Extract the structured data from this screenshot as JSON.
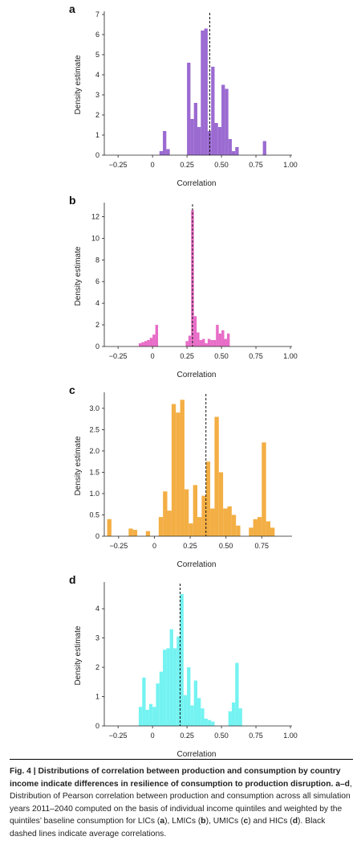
{
  "chart_data": [
    {
      "type": "bar",
      "panel": "a",
      "xlabel": "Correlation",
      "ylabel": "Density estimate",
      "xlim": [
        -0.35,
        1.0
      ],
      "ylim": [
        0,
        7
      ],
      "xticks": [
        -0.25,
        0,
        0.25,
        0.5,
        0.75,
        1.0
      ],
      "xtick_labels": [
        "−0.25",
        "0",
        "0.25",
        "0.50",
        "0.75",
        "1.00"
      ],
      "yticks": [
        0,
        1,
        2,
        3,
        4,
        5,
        6,
        7
      ],
      "mean_line": 0.415,
      "color": "#9b6ad1",
      "bin_width": 0.025,
      "bins": [
        {
          "x": 0.05,
          "v": 0.2
        },
        {
          "x": 0.075,
          "v": 1.2
        },
        {
          "x": 0.1,
          "v": 0.3
        },
        {
          "x": 0.25,
          "v": 4.6
        },
        {
          "x": 0.275,
          "v": 1.8
        },
        {
          "x": 0.3,
          "v": 2.6
        },
        {
          "x": 0.325,
          "v": 1.4
        },
        {
          "x": 0.35,
          "v": 6.2
        },
        {
          "x": 0.375,
          "v": 6.3
        },
        {
          "x": 0.4,
          "v": 1.2
        },
        {
          "x": 0.425,
          "v": 4.4
        },
        {
          "x": 0.45,
          "v": 1.6
        },
        {
          "x": 0.475,
          "v": 1.4
        },
        {
          "x": 0.5,
          "v": 3.5
        },
        {
          "x": 0.525,
          "v": 3.3
        },
        {
          "x": 0.55,
          "v": 0.8
        },
        {
          "x": 0.575,
          "v": 0.2
        },
        {
          "x": 0.6,
          "v": 0.4
        },
        {
          "x": 0.8,
          "v": 0.7
        }
      ]
    },
    {
      "type": "bar",
      "panel": "b",
      "xlabel": "Correlation",
      "ylabel": "Density estimate",
      "xlim": [
        -0.35,
        1.0
      ],
      "ylim": [
        0,
        13
      ],
      "xticks": [
        -0.25,
        0,
        0.25,
        0.5,
        0.75,
        1.0
      ],
      "xtick_labels": [
        "−0.25",
        "0",
        "0.25",
        "0.50",
        "0.75",
        "1.00"
      ],
      "yticks": [
        0,
        2,
        4,
        6,
        8,
        10,
        12
      ],
      "mean_line": 0.29,
      "color": "#e86cc7",
      "bin_width": 0.02,
      "bins": [
        {
          "x": -0.1,
          "v": 0.3
        },
        {
          "x": -0.08,
          "v": 0.4
        },
        {
          "x": -0.06,
          "v": 0.5
        },
        {
          "x": -0.04,
          "v": 0.6
        },
        {
          "x": -0.02,
          "v": 0.8
        },
        {
          "x": 0.0,
          "v": 1.1
        },
        {
          "x": 0.02,
          "v": 2.0
        },
        {
          "x": 0.24,
          "v": 0.5
        },
        {
          "x": 0.26,
          "v": 1.0
        },
        {
          "x": 0.28,
          "v": 12.6
        },
        {
          "x": 0.3,
          "v": 2.8
        },
        {
          "x": 0.32,
          "v": 1.3
        },
        {
          "x": 0.34,
          "v": 0.6
        },
        {
          "x": 0.36,
          "v": 0.7
        },
        {
          "x": 0.38,
          "v": 0.3
        },
        {
          "x": 0.4,
          "v": 0.7
        },
        {
          "x": 0.42,
          "v": 0.6
        },
        {
          "x": 0.44,
          "v": 0.6
        },
        {
          "x": 0.46,
          "v": 2.0
        },
        {
          "x": 0.48,
          "v": 1.2
        },
        {
          "x": 0.5,
          "v": 1.5
        },
        {
          "x": 0.52,
          "v": 0.7
        },
        {
          "x": 0.54,
          "v": 1.2
        }
      ]
    },
    {
      "type": "bar",
      "panel": "c",
      "xlabel": "Correlation",
      "ylabel": "Density estimate",
      "xlim": [
        -0.35,
        0.95
      ],
      "ylim": [
        0,
        3.3
      ],
      "xticks": [
        -0.25,
        0,
        0.25,
        0.5,
        0.75
      ],
      "xtick_labels": [
        "−0.25",
        "0",
        "0.25",
        "0.50",
        "0.75"
      ],
      "yticks": [
        0,
        0.5,
        1.0,
        1.5,
        2.0,
        2.5,
        3.0
      ],
      "ytick_labels": [
        "0",
        "0.5",
        "1.0",
        "1.5",
        "2.0",
        "2.5",
        "3.0"
      ],
      "mean_line": 0.36,
      "color": "#f3ae44",
      "bin_width": 0.03,
      "bins": [
        {
          "x": -0.33,
          "v": 0.4
        },
        {
          "x": -0.18,
          "v": 0.18
        },
        {
          "x": -0.15,
          "v": 0.15
        },
        {
          "x": -0.06,
          "v": 0.12
        },
        {
          "x": 0.03,
          "v": 0.45
        },
        {
          "x": 0.06,
          "v": 1.05
        },
        {
          "x": 0.09,
          "v": 0.6
        },
        {
          "x": 0.12,
          "v": 3.1
        },
        {
          "x": 0.15,
          "v": 2.9
        },
        {
          "x": 0.18,
          "v": 3.2
        },
        {
          "x": 0.21,
          "v": 1.1
        },
        {
          "x": 0.24,
          "v": 0.3
        },
        {
          "x": 0.27,
          "v": 1.2
        },
        {
          "x": 0.3,
          "v": 0.45
        },
        {
          "x": 0.33,
          "v": 0.95
        },
        {
          "x": 0.36,
          "v": 1.75
        },
        {
          "x": 0.39,
          "v": 0.65
        },
        {
          "x": 0.42,
          "v": 2.8
        },
        {
          "x": 0.45,
          "v": 1.5
        },
        {
          "x": 0.48,
          "v": 0.65
        },
        {
          "x": 0.51,
          "v": 0.7
        },
        {
          "x": 0.54,
          "v": 0.5
        },
        {
          "x": 0.57,
          "v": 0.25
        },
        {
          "x": 0.66,
          "v": 0.2
        },
        {
          "x": 0.69,
          "v": 0.4
        },
        {
          "x": 0.72,
          "v": 0.45
        },
        {
          "x": 0.75,
          "v": 2.2
        },
        {
          "x": 0.78,
          "v": 0.35
        },
        {
          "x": 0.81,
          "v": 0.2
        }
      ]
    },
    {
      "type": "bar",
      "panel": "d",
      "xlabel": "Correlation",
      "ylabel": "Density estimate",
      "xlim": [
        -0.35,
        1.0
      ],
      "ylim": [
        0,
        4.8
      ],
      "xticks": [
        -0.25,
        0,
        0.25,
        0.5,
        0.75,
        1.0
      ],
      "xtick_labels": [
        "−0.25",
        "0",
        "0.25",
        "0.50",
        "0.75",
        "1.00"
      ],
      "yticks": [
        0,
        1,
        2,
        3,
        4
      ],
      "mean_line": 0.2,
      "color": "#73f3f1",
      "bin_width": 0.025,
      "bins": [
        {
          "x": -0.1,
          "v": 0.65
        },
        {
          "x": -0.075,
          "v": 1.65
        },
        {
          "x": -0.05,
          "v": 0.55
        },
        {
          "x": -0.025,
          "v": 0.75
        },
        {
          "x": 0.0,
          "v": 0.65
        },
        {
          "x": 0.025,
          "v": 1.45
        },
        {
          "x": 0.05,
          "v": 1.85
        },
        {
          "x": 0.075,
          "v": 2.6
        },
        {
          "x": 0.1,
          "v": 2.65
        },
        {
          "x": 0.125,
          "v": 3.3
        },
        {
          "x": 0.15,
          "v": 2.65
        },
        {
          "x": 0.175,
          "v": 3.05
        },
        {
          "x": 0.2,
          "v": 4.5
        },
        {
          "x": 0.225,
          "v": 1.05
        },
        {
          "x": 0.25,
          "v": 2.0
        },
        {
          "x": 0.275,
          "v": 0.7
        },
        {
          "x": 0.3,
          "v": 1.55
        },
        {
          "x": 0.325,
          "v": 0.95
        },
        {
          "x": 0.35,
          "v": 0.6
        },
        {
          "x": 0.375,
          "v": 0.25
        },
        {
          "x": 0.4,
          "v": 0.2
        },
        {
          "x": 0.425,
          "v": 0.15
        },
        {
          "x": 0.55,
          "v": 0.5
        },
        {
          "x": 0.575,
          "v": 0.8
        },
        {
          "x": 0.6,
          "v": 2.15
        },
        {
          "x": 0.625,
          "v": 0.6
        }
      ]
    }
  ],
  "caption": {
    "title": "Fig. 4 | Distributions of correlation between production and consumption by country income indicate differences in resilience of consumption to production disruption.",
    "lead": "a–d",
    "body_1": ", Distribution of Pearson correlation between production and consumption across all simulation years 2011–2040 computed on the basis of individual income quintiles and weighted by the quintiles’ baseline consumption for LICs (",
    "ref_a": "a",
    "sep_1": "), LMICs (",
    "ref_b": "b",
    "sep_2": "), UMICs (",
    "ref_c": "c",
    "sep_3": ") and HICs (",
    "ref_d": "d",
    "body_2": "). Black dashed lines indicate average correlations."
  }
}
